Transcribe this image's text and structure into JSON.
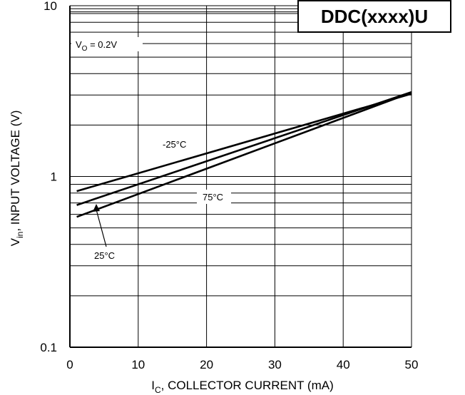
{
  "chart_data": {
    "type": "line",
    "title": "DDC(xxxx)U",
    "xlabel": {
      "main": "I",
      "sub": "C",
      "rest": ", COLLECTOR CURRENT (mA)"
    },
    "ylabel": {
      "main": "V",
      "sub": "in",
      "rest": ", INPUT VOLTAGE (V)"
    },
    "xlim": [
      0,
      50
    ],
    "ylim": [
      0.1,
      10
    ],
    "yscale": "log",
    "grid": true,
    "x_ticks": [
      "0",
      "10",
      "20",
      "30",
      "40",
      "50"
    ],
    "y_ticks": [
      "0.1",
      "1",
      "10"
    ],
    "condition": {
      "main": "V",
      "sub": "O",
      "rest": " = 0.2V"
    },
    "series": [
      {
        "name": "-25°C",
        "x": [
          1,
          50
        ],
        "y": [
          0.82,
          3.05
        ]
      },
      {
        "name": "75°C",
        "x": [
          1,
          50
        ],
        "y": [
          0.58,
          3.1
        ]
      },
      {
        "name": "25°C",
        "x": [
          1,
          50
        ],
        "y": [
          0.68,
          3.12
        ]
      }
    ]
  }
}
